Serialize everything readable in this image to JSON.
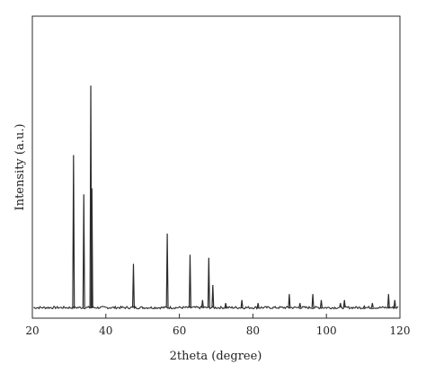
{
  "chart_data": {
    "type": "line",
    "xlabel": "2theta (degree)",
    "ylabel": "Intensity (a.u.)",
    "xlim": [
      20,
      120
    ],
    "ylim": [
      0,
      100
    ],
    "grid": false,
    "legend": "none",
    "xticks": [
      20,
      40,
      60,
      80,
      100,
      120
    ],
    "x_tick_labels": [
      "20",
      "40",
      "60",
      "80",
      "100",
      "120"
    ],
    "baseline": 3.5,
    "line_color": "#2b2b2b",
    "series": [
      {
        "peaks": [
          {
            "x": 31.2,
            "y": 54
          },
          {
            "x": 34.0,
            "y": 41
          },
          {
            "x": 35.9,
            "y": 77
          },
          {
            "x": 36.2,
            "y": 43
          },
          {
            "x": 47.5,
            "y": 18
          },
          {
            "x": 56.7,
            "y": 28
          },
          {
            "x": 62.9,
            "y": 21
          },
          {
            "x": 66.3,
            "y": 6
          },
          {
            "x": 68.0,
            "y": 20
          },
          {
            "x": 69.1,
            "y": 11
          },
          {
            "x": 72.6,
            "y": 5
          },
          {
            "x": 77.0,
            "y": 6
          },
          {
            "x": 81.4,
            "y": 5
          },
          {
            "x": 89.9,
            "y": 8
          },
          {
            "x": 92.8,
            "y": 5
          },
          {
            "x": 96.3,
            "y": 8
          },
          {
            "x": 98.6,
            "y": 6
          },
          {
            "x": 103.8,
            "y": 5
          },
          {
            "x": 104.9,
            "y": 6
          },
          {
            "x": 110.3,
            "y": 4
          },
          {
            "x": 112.5,
            "y": 5
          },
          {
            "x": 116.9,
            "y": 8
          },
          {
            "x": 118.6,
            "y": 6
          }
        ]
      }
    ]
  }
}
